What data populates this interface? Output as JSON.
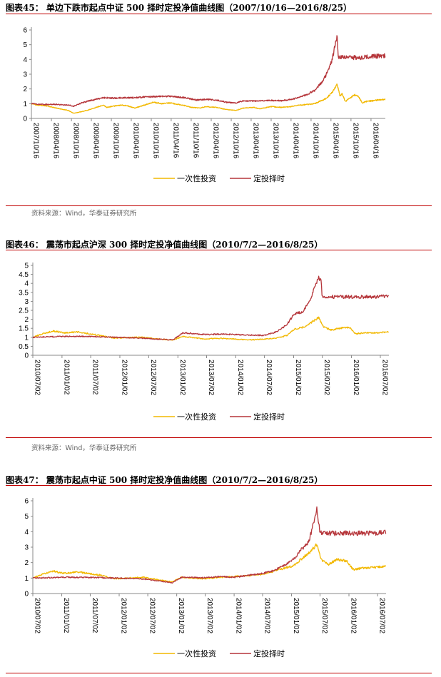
{
  "figures": [
    {
      "title": "图表45：  单边下跌市起点中证 500 择时定投净值曲线图（2007/10/16—2016/8/25）",
      "source": "资料来源：Wind，华泰证券研究所"
    },
    {
      "title": "图表46：  震荡市起点沪深 300 择时定投净值曲线图（2010/7/2—2016/8/25）",
      "source": "资料来源：Wind，华泰证券研究所"
    },
    {
      "title": "图表47：  震荡市起点中证 500 择时定投净值曲线图（2010/7/2—2016/8/25）"
    }
  ],
  "colors": {
    "series1": "#f2b800",
    "series2": "#b5353a",
    "rule": "#c00000"
  },
  "chart_data": [
    {
      "type": "line",
      "ylim": [
        0,
        6
      ],
      "yticks": [
        "0",
        "1",
        "2",
        "3",
        "4",
        "5",
        "6"
      ],
      "xlim": [
        "2007-10-16",
        "2016-08-25"
      ],
      "xticks": [
        "2007/10/16",
        "2008/04/16",
        "2008/10/16",
        "2009/04/16",
        "2009/10/16",
        "2010/04/16",
        "2010/10/16",
        "2011/04/16",
        "2011/10/16",
        "2012/04/16",
        "2012/10/16",
        "2013/04/16",
        "2013/10/16",
        "2014/04/16",
        "2014/10/16",
        "2015/04/16",
        "2015/10/16",
        "2016/04/16"
      ],
      "legend": "bottom",
      "series": [
        {
          "name": "一次性投资",
          "x": [
            "2007-10-16",
            "2007-12-15",
            "2008-03-01",
            "2008-06-01",
            "2008-09-15",
            "2008-11-04",
            "2009-01-15",
            "2009-04-01",
            "2009-06-01",
            "2009-08-04",
            "2009-09-01",
            "2009-11-20",
            "2010-01-15",
            "2010-03-15",
            "2010-05-20",
            "2010-07-02",
            "2010-09-01",
            "2010-11-10",
            "2011-01-25",
            "2011-04-10",
            "2011-06-20",
            "2011-09-01",
            "2011-10-20",
            "2012-01-05",
            "2012-03-01",
            "2012-06-01",
            "2012-09-01",
            "2012-12-03",
            "2013-02-01",
            "2013-05-15",
            "2013-07-01",
            "2013-10-15",
            "2014-01-15",
            "2014-04-15",
            "2014-07-01",
            "2014-09-15",
            "2014-11-20",
            "2015-01-15",
            "2015-03-01",
            "2015-04-20",
            "2015-06-12",
            "2015-07-08",
            "2015-07-25",
            "2015-08-26",
            "2015-09-20",
            "2015-11-15",
            "2015-12-20",
            "2016-01-28",
            "2016-03-01",
            "2016-05-01",
            "2016-06-20",
            "2016-08-25"
          ],
          "values": [
            1.0,
            0.9,
            0.85,
            0.7,
            0.55,
            0.35,
            0.45,
            0.6,
            0.75,
            0.9,
            0.75,
            0.85,
            0.9,
            0.85,
            0.7,
            0.8,
            0.95,
            1.1,
            1.0,
            1.05,
            0.95,
            0.85,
            0.75,
            0.7,
            0.8,
            0.75,
            0.6,
            0.55,
            0.7,
            0.75,
            0.65,
            0.8,
            0.75,
            0.8,
            0.9,
            0.95,
            1.0,
            1.2,
            1.35,
            1.7,
            2.3,
            1.5,
            1.7,
            1.15,
            1.3,
            1.6,
            1.5,
            1.05,
            1.15,
            1.2,
            1.25,
            1.3
          ]
        },
        {
          "name": "定投择时",
          "x": [
            "2007-10-16",
            "2008-01-01",
            "2008-06-01",
            "2008-10-01",
            "2008-11-04",
            "2009-01-15",
            "2009-04-01",
            "2009-06-01",
            "2009-08-04",
            "2009-11-20",
            "2010-03-01",
            "2010-06-01",
            "2010-11-10",
            "2011-04-10",
            "2011-09-01",
            "2011-12-01",
            "2012-03-01",
            "2012-06-01",
            "2012-09-01",
            "2012-12-03",
            "2013-02-01",
            "2013-06-01",
            "2013-10-15",
            "2014-01-15",
            "2014-05-01",
            "2014-09-01",
            "2014-11-20",
            "2015-01-15",
            "2015-03-01",
            "2015-04-20",
            "2015-06-12",
            "2015-06-20",
            "2015-07-20",
            "2016-01-15",
            "2016-04-01",
            "2016-08-25"
          ],
          "values": [
            1.0,
            0.95,
            0.95,
            0.9,
            0.82,
            1.05,
            1.2,
            1.3,
            1.4,
            1.38,
            1.4,
            1.42,
            1.48,
            1.5,
            1.4,
            1.25,
            1.3,
            1.25,
            1.1,
            1.05,
            1.2,
            1.18,
            1.22,
            1.2,
            1.3,
            1.6,
            1.9,
            2.4,
            2.9,
            3.8,
            5.6,
            4.15,
            4.15,
            4.12,
            4.2,
            4.25
          ]
        }
      ]
    },
    {
      "type": "line",
      "ylim": [
        0,
        5
      ],
      "yticks": [
        "0",
        "0.5",
        "1",
        "1.5",
        "2",
        "2.5",
        "3",
        "3.5",
        "4",
        "4.5",
        "5"
      ],
      "xlim": [
        "2010-07-02",
        "2016-08-25"
      ],
      "xticks": [
        "2010/07/02",
        "2011/01/02",
        "2011/07/02",
        "2012/01/02",
        "2012/07/02",
        "2013/01/02",
        "2013/07/02",
        "2014/01/02",
        "2014/07/02",
        "2015/01/02",
        "2015/07/02",
        "2016/01/02",
        "2016/07/02"
      ],
      "legend": "bottom",
      "series": [
        {
          "name": "一次性投资",
          "x": [
            "2010-07-02",
            "2010-09-01",
            "2010-11-10",
            "2011-01-15",
            "2011-04-15",
            "2011-06-20",
            "2011-09-01",
            "2011-12-01",
            "2012-03-01",
            "2012-06-01",
            "2012-09-01",
            "2012-12-03",
            "2013-02-01",
            "2013-06-25",
            "2013-09-01",
            "2014-01-01",
            "2014-03-20",
            "2014-07-01",
            "2014-09-15",
            "2014-11-20",
            "2015-01-05",
            "2015-03-01",
            "2015-04-20",
            "2015-06-08",
            "2015-07-08",
            "2015-08-26",
            "2015-10-15",
            "2015-12-20",
            "2016-01-28",
            "2016-04-01",
            "2016-06-01",
            "2016-08-25"
          ],
          "values": [
            1.0,
            1.2,
            1.35,
            1.25,
            1.3,
            1.2,
            1.1,
            0.95,
            1.0,
            1.0,
            0.9,
            0.85,
            1.05,
            0.9,
            0.95,
            0.9,
            0.85,
            0.9,
            0.95,
            1.1,
            1.45,
            1.55,
            1.8,
            2.1,
            1.6,
            1.4,
            1.5,
            1.55,
            1.2,
            1.25,
            1.25,
            1.3
          ]
        },
        {
          "name": "定投择时",
          "x": [
            "2010-07-02",
            "2011-01-01",
            "2011-06-01",
            "2011-12-01",
            "2012-06-01",
            "2012-12-03",
            "2013-02-01",
            "2013-06-25",
            "2013-10-01",
            "2014-01-01",
            "2014-07-01",
            "2014-09-15",
            "2014-11-20",
            "2015-01-05",
            "2015-03-01",
            "2015-04-20",
            "2015-06-08",
            "2015-06-26",
            "2015-07-01",
            "2016-01-01",
            "2016-05-01",
            "2016-08-25"
          ],
          "values": [
            1.0,
            1.05,
            1.05,
            1.0,
            0.95,
            0.85,
            1.25,
            1.15,
            1.18,
            1.15,
            1.1,
            1.3,
            1.7,
            2.3,
            2.4,
            3.2,
            4.35,
            4.1,
            3.25,
            3.25,
            3.25,
            3.3
          ]
        }
      ]
    },
    {
      "type": "line",
      "ylim": [
        0,
        6
      ],
      "yticks": [
        "0",
        "1",
        "2",
        "3",
        "4",
        "5",
        "6"
      ],
      "xlim": [
        "2010-07-02",
        "2016-08-25"
      ],
      "xticks": [
        "2010/07/02",
        "2011/01/02",
        "2011/07/02",
        "2012/01/02",
        "2012/07/02",
        "2013/01/02",
        "2013/07/02",
        "2014/01/02",
        "2014/07/02",
        "2015/01/02",
        "2015/07/02",
        "2016/01/02",
        "2016/07/02"
      ],
      "legend": "bottom",
      "series": [
        {
          "name": "一次性投资",
          "x": [
            "2010-07-02",
            "2010-09-01",
            "2010-11-10",
            "2011-01-15",
            "2011-04-15",
            "2011-06-20",
            "2011-09-01",
            "2011-12-01",
            "2012-03-01",
            "2012-06-01",
            "2012-09-01",
            "2012-12-03",
            "2013-02-01",
            "2013-06-25",
            "2013-10-01",
            "2014-01-01",
            "2014-07-01",
            "2014-09-15",
            "2014-11-20",
            "2015-01-15",
            "2015-03-01",
            "2015-04-20",
            "2015-06-12",
            "2015-07-08",
            "2015-08-26",
            "2015-10-15",
            "2015-12-20",
            "2016-01-28",
            "2016-04-01",
            "2016-08-25"
          ],
          "values": [
            1.0,
            1.25,
            1.45,
            1.3,
            1.4,
            1.3,
            1.2,
            0.95,
            1.0,
            1.05,
            0.9,
            0.75,
            1.05,
            0.95,
            1.05,
            1.1,
            1.25,
            1.45,
            1.65,
            1.8,
            2.2,
            2.6,
            3.2,
            2.2,
            1.9,
            2.2,
            2.1,
            1.55,
            1.65,
            1.75
          ]
        },
        {
          "name": "定投择时",
          "x": [
            "2010-07-02",
            "2011-01-01",
            "2011-06-01",
            "2011-12-01",
            "2012-06-01",
            "2012-12-03",
            "2013-02-01",
            "2013-06-25",
            "2013-10-01",
            "2014-01-01",
            "2014-07-01",
            "2014-09-15",
            "2014-11-20",
            "2015-01-15",
            "2015-03-01",
            "2015-04-20",
            "2015-06-12",
            "2015-06-26",
            "2015-07-01",
            "2016-01-01",
            "2016-05-01",
            "2016-08-25"
          ],
          "values": [
            1.0,
            1.05,
            1.05,
            1.0,
            0.95,
            0.7,
            1.05,
            1.02,
            1.1,
            1.05,
            1.3,
            1.5,
            1.85,
            2.2,
            2.8,
            3.3,
            5.4,
            4.5,
            3.9,
            3.9,
            3.9,
            3.95
          ]
        }
      ]
    }
  ]
}
